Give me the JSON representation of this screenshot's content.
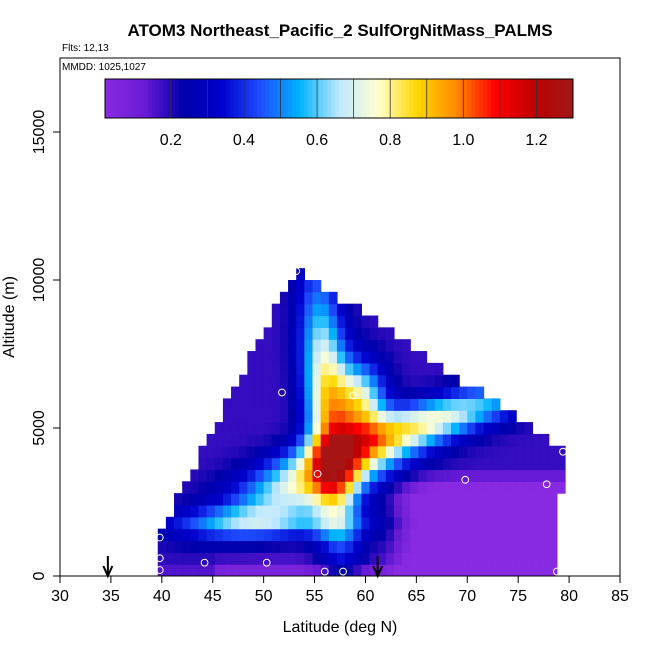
{
  "chart_data": {
    "type": "heatmap",
    "title": "ATOM3 Northeast_Pacific_2 SulfOrgNitMass_PALMS",
    "subtitle_flights": "Flts: 12,13",
    "subtitle_dates": "MMDD: 1025,1027",
    "xlabel": "Latitude (deg N)",
    "ylabel": "Altitude (m)",
    "xlim": [
      30,
      85
    ],
    "ylim": [
      0,
      17500
    ],
    "xticks": [
      "30",
      "35",
      "40",
      "45",
      "50",
      "55",
      "60",
      "65",
      "70",
      "75",
      "80",
      "85"
    ],
    "yticks": [
      "0",
      "5000",
      "10000",
      "15000"
    ],
    "colorbar": {
      "range": [
        0.02,
        1.3
      ],
      "tick_values": [
        0.2,
        0.4,
        0.6,
        0.8,
        1.0,
        1.2
      ],
      "tick_labels": [
        "0.2",
        "0.4",
        "0.6",
        "0.8",
        "1.0",
        "1.2"
      ],
      "colors": [
        "#8a2be2",
        "#6a1bd6",
        "#0000aa",
        "#0000cd",
        "#1e4fff",
        "#00b4ff",
        "#bfe8ff",
        "#ffffd0",
        "#ffd700",
        "#ff8c00",
        "#ff0000",
        "#c00000",
        "#a01818"
      ]
    },
    "grid": false,
    "field": {
      "domain_polygon": [
        [
          39.8,
          0
        ],
        [
          78.8,
          0
        ],
        [
          79.4,
          4300
        ],
        [
          53.2,
          10400
        ],
        [
          39.8,
          1500
        ]
      ],
      "hotspot": {
        "lat": 59,
        "alt": 5800,
        "value": 1.25
      },
      "description_low": "low values (<0.1) in lower-right region and near surface",
      "ridge_value": 0.8
    },
    "sample_points": [
      {
        "lat": 53.2,
        "alt": 10300
      },
      {
        "lat": 51.8,
        "alt": 6200
      },
      {
        "lat": 58.8,
        "alt": 6100
      },
      {
        "lat": 55.3,
        "alt": 3450
      },
      {
        "lat": 69.8,
        "alt": 3250
      },
      {
        "lat": 77.8,
        "alt": 3100
      },
      {
        "lat": 79.4,
        "alt": 4200
      },
      {
        "lat": 39.8,
        "alt": 1300
      },
      {
        "lat": 39.8,
        "alt": 600
      },
      {
        "lat": 39.8,
        "alt": 200
      },
      {
        "lat": 44.2,
        "alt": 450
      },
      {
        "lat": 50.3,
        "alt": 450
      },
      {
        "lat": 56.0,
        "alt": 150
      },
      {
        "lat": 57.8,
        "alt": 150
      },
      {
        "lat": 78.8,
        "alt": 150
      }
    ],
    "flight_arrows": [
      34.7,
      61.2
    ]
  }
}
